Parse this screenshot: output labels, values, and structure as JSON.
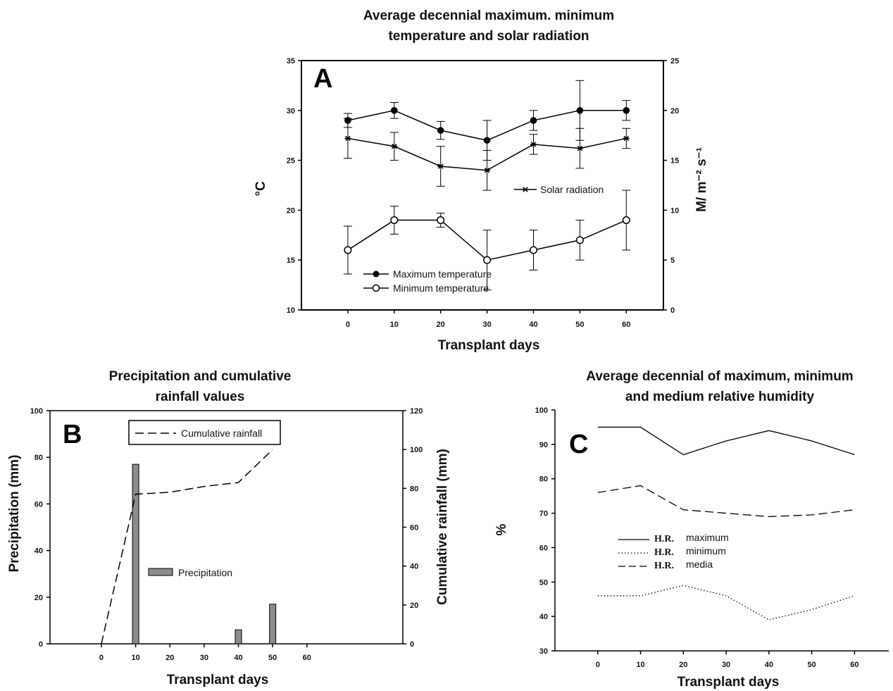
{
  "chart_data": [
    {
      "id": "A",
      "type": "line",
      "panel_label": "A",
      "title_lines": [
        "Average decennial maximum. minimum",
        "temperature and solar radiation"
      ],
      "xlabel": "Transplant days",
      "ylabel": "°C",
      "y2label": "M/ m⁻² s⁻¹",
      "x": [
        0,
        10,
        20,
        30,
        40,
        50,
        60
      ],
      "xlim": [
        -10,
        68
      ],
      "ylim": [
        10,
        35
      ],
      "y2lim": [
        0,
        25
      ],
      "yticks": [
        10,
        15,
        20,
        25,
        30,
        35
      ],
      "y2ticks": [
        0,
        5,
        10,
        15,
        20,
        25
      ],
      "series": [
        {
          "name": "Maximum temperature",
          "axis": "left",
          "marker": "filled-circle",
          "values": [
            29,
            30,
            28,
            27,
            29,
            30,
            30
          ],
          "errors": [
            0.7,
            0.8,
            0.9,
            2.0,
            1.0,
            3.0,
            1.0
          ]
        },
        {
          "name": "Minimum temperature",
          "axis": "left",
          "marker": "open-circle",
          "values": [
            16,
            19,
            19,
            15,
            16,
            17,
            19
          ],
          "errors": [
            2.4,
            1.4,
            0.7,
            3.0,
            2.0,
            2.0,
            3.0
          ]
        },
        {
          "name": "Solar radiation",
          "axis": "right",
          "marker": "star",
          "values": [
            17.2,
            16.4,
            14.4,
            14.0,
            16.6,
            16.2,
            17.2
          ],
          "errors": [
            2.0,
            1.4,
            2.0,
            2.0,
            1.0,
            2.0,
            1.0
          ]
        }
      ]
    },
    {
      "id": "B",
      "type": "bar",
      "panel_label": "B",
      "title_lines": [
        "Precipitation and cumulative",
        "rainfall values"
      ],
      "xlabel": "Transplant days",
      "ylabel": "Precipitation (mm)",
      "y2label": "Cumulative rainfall (mm)",
      "xlim": [
        -15,
        88
      ],
      "ylim": [
        0,
        100
      ],
      "y2lim": [
        0,
        120
      ],
      "xticks": [
        0,
        10,
        20,
        30,
        40,
        50,
        60
      ],
      "xtick_labels": [
        "0",
        "10",
        "20",
        "30",
        "40",
        "50",
        "60"
      ],
      "yticks": [
        0,
        20,
        40,
        60,
        80,
        100
      ],
      "ytick_labels": [
        "0",
        "20",
        "40",
        "60",
        "80",
        "100"
      ],
      "y2ticks": [
        0,
        20,
        40,
        60,
        80,
        100,
        120
      ],
      "y2tick_labels": [
        "0",
        "20",
        "40",
        "60",
        "80",
        "100",
        "120"
      ],
      "series": [
        {
          "name": "Precipitation",
          "axis": "left",
          "style": "bar",
          "x": [
            10,
            40,
            50
          ],
          "values": [
            77,
            6,
            17
          ]
        },
        {
          "name": "Cumulative rainfall",
          "axis": "right",
          "style": "dashed-line",
          "x": [
            0,
            10,
            20,
            30,
            40,
            50
          ],
          "values": [
            0,
            77,
            78,
            81,
            83,
            100
          ]
        }
      ]
    },
    {
      "id": "C",
      "type": "line",
      "panel_label": "C",
      "title_lines": [
        "Average decennial of maximum, minimum",
        "and medium relative humidity"
      ],
      "xlabel": "Transplant days",
      "ylabel": "%",
      "x": [
        0,
        10,
        20,
        30,
        40,
        50,
        60
      ],
      "xlim": [
        -10,
        68
      ],
      "ylim": [
        30,
        100
      ],
      "yticks": [
        30,
        40,
        50,
        60,
        70,
        80,
        90,
        100
      ],
      "series": [
        {
          "legend_prefix": "H.R.",
          "name": "maximum",
          "style": "solid",
          "values": [
            95,
            95,
            87,
            91,
            94,
            91,
            87
          ]
        },
        {
          "legend_prefix": "H.R.",
          "name": "minimum",
          "style": "dotted",
          "values": [
            46,
            46,
            49,
            46,
            39,
            42,
            46
          ]
        },
        {
          "legend_prefix": "H.R.",
          "name": "media",
          "style": "dashed",
          "values": [
            76,
            78,
            71,
            70,
            69,
            69.5,
            71
          ]
        }
      ]
    }
  ]
}
